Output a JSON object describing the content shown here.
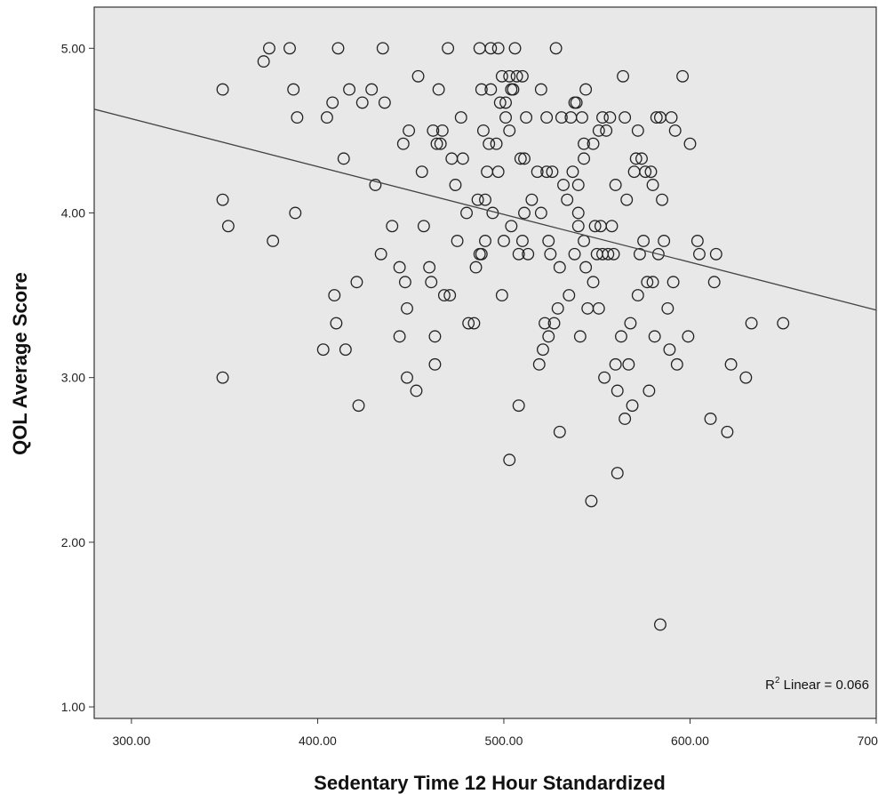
{
  "chart_data": {
    "type": "scatter",
    "xlabel": "Sedentary Time 12 Hour Standardized",
    "ylabel": "QOL Average Score",
    "xlim": [
      280,
      700
    ],
    "ylim": [
      0.93,
      5.25
    ],
    "xticks": [
      300,
      400,
      500,
      600,
      700
    ],
    "xtick_labels": [
      "300.00",
      "400.00",
      "500.00",
      "600.00",
      "700.00"
    ],
    "yticks": [
      1,
      2,
      3,
      4,
      5
    ],
    "ytick_labels": [
      "1.00",
      "2.00",
      "3.00",
      "4.00",
      "5.00"
    ],
    "grid": false,
    "plot_background": "#e8e8e8",
    "marker_color": "#222222",
    "fit_line": {
      "type": "linear",
      "points": [
        [
          280,
          4.63
        ],
        [
          700,
          3.41
        ]
      ],
      "annotation_prefix": "R",
      "annotation_sup": "2",
      "annotation_suffix": " Linear = 0.066"
    },
    "points": [
      [
        349,
        4.75
      ],
      [
        349,
        4.08
      ],
      [
        349,
        3.0
      ],
      [
        352,
        3.92
      ],
      [
        371,
        4.92
      ],
      [
        374,
        5.0
      ],
      [
        376,
        3.83
      ],
      [
        385,
        5.0
      ],
      [
        387,
        4.75
      ],
      [
        388,
        4.0
      ],
      [
        389,
        4.58
      ],
      [
        403,
        3.17
      ],
      [
        405,
        4.58
      ],
      [
        408,
        4.67
      ],
      [
        409,
        3.5
      ],
      [
        410,
        3.33
      ],
      [
        411,
        5.0
      ],
      [
        414,
        4.33
      ],
      [
        415,
        3.17
      ],
      [
        417,
        4.75
      ],
      [
        421,
        3.58
      ],
      [
        422,
        2.83
      ],
      [
        424,
        4.67
      ],
      [
        429,
        4.75
      ],
      [
        431,
        4.17
      ],
      [
        434,
        3.75
      ],
      [
        435,
        5.0
      ],
      [
        436,
        4.67
      ],
      [
        440,
        3.92
      ],
      [
        444,
        3.67
      ],
      [
        444,
        3.25
      ],
      [
        446,
        4.42
      ],
      [
        447,
        3.58
      ],
      [
        448,
        3.0
      ],
      [
        448,
        3.42
      ],
      [
        449,
        4.5
      ],
      [
        453,
        2.92
      ],
      [
        454,
        4.83
      ],
      [
        456,
        4.25
      ],
      [
        457,
        3.92
      ],
      [
        460,
        3.67
      ],
      [
        461,
        3.58
      ],
      [
        462,
        4.5
      ],
      [
        463,
        3.25
      ],
      [
        463,
        3.08
      ],
      [
        464,
        4.42
      ],
      [
        465,
        4.75
      ],
      [
        466,
        4.42
      ],
      [
        467,
        4.5
      ],
      [
        468,
        3.5
      ],
      [
        470,
        5.0
      ],
      [
        471,
        3.5
      ],
      [
        472,
        4.33
      ],
      [
        474,
        4.17
      ],
      [
        475,
        3.83
      ],
      [
        477,
        4.58
      ],
      [
        478,
        4.33
      ],
      [
        480,
        4.0
      ],
      [
        481,
        3.33
      ],
      [
        484,
        3.33
      ],
      [
        485,
        3.67
      ],
      [
        486,
        4.08
      ],
      [
        487,
        3.75
      ],
      [
        487,
        5.0
      ],
      [
        488,
        4.75
      ],
      [
        488,
        3.75
      ],
      [
        489,
        4.5
      ],
      [
        490,
        4.08
      ],
      [
        490,
        3.83
      ],
      [
        491,
        4.25
      ],
      [
        492,
        4.42
      ],
      [
        493,
        4.75
      ],
      [
        493,
        5.0
      ],
      [
        494,
        4.0
      ],
      [
        496,
        4.42
      ],
      [
        497,
        4.25
      ],
      [
        497,
        5.0
      ],
      [
        498,
        4.67
      ],
      [
        499,
        3.5
      ],
      [
        499,
        4.83
      ],
      [
        500,
        3.83
      ],
      [
        501,
        4.67
      ],
      [
        501,
        4.58
      ],
      [
        503,
        4.83
      ],
      [
        503,
        4.5
      ],
      [
        503,
        2.5
      ],
      [
        504,
        4.75
      ],
      [
        504,
        3.92
      ],
      [
        505,
        4.75
      ],
      [
        506,
        5.0
      ],
      [
        507,
        4.83
      ],
      [
        508,
        3.75
      ],
      [
        508,
        2.83
      ],
      [
        509,
        4.33
      ],
      [
        510,
        4.83
      ],
      [
        510,
        3.83
      ],
      [
        511,
        4.33
      ],
      [
        511,
        4.0
      ],
      [
        512,
        4.58
      ],
      [
        513,
        3.75
      ],
      [
        515,
        4.08
      ],
      [
        518,
        4.25
      ],
      [
        519,
        3.08
      ],
      [
        520,
        4.0
      ],
      [
        520,
        4.75
      ],
      [
        521,
        3.17
      ],
      [
        522,
        3.33
      ],
      [
        523,
        4.25
      ],
      [
        523,
        4.58
      ],
      [
        524,
        3.83
      ],
      [
        524,
        3.25
      ],
      [
        525,
        3.75
      ],
      [
        526,
        4.25
      ],
      [
        527,
        3.33
      ],
      [
        528,
        5.0
      ],
      [
        529,
        3.42
      ],
      [
        530,
        3.67
      ],
      [
        530,
        2.67
      ],
      [
        531,
        4.58
      ],
      [
        532,
        4.17
      ],
      [
        534,
        4.08
      ],
      [
        535,
        3.5
      ],
      [
        536,
        4.58
      ],
      [
        537,
        4.25
      ],
      [
        538,
        4.67
      ],
      [
        538,
        3.75
      ],
      [
        539,
        4.67
      ],
      [
        540,
        4.17
      ],
      [
        540,
        3.92
      ],
      [
        540,
        4.0
      ],
      [
        541,
        3.25
      ],
      [
        542,
        4.58
      ],
      [
        543,
        4.33
      ],
      [
        543,
        4.42
      ],
      [
        543,
        3.83
      ],
      [
        544,
        3.67
      ],
      [
        544,
        4.75
      ],
      [
        545,
        3.42
      ],
      [
        547,
        2.25
      ],
      [
        548,
        3.58
      ],
      [
        548,
        4.42
      ],
      [
        549,
        3.92
      ],
      [
        550,
        3.75
      ],
      [
        551,
        4.5
      ],
      [
        551,
        3.42
      ],
      [
        552,
        3.92
      ],
      [
        553,
        4.58
      ],
      [
        553,
        3.75
      ],
      [
        554,
        3.0
      ],
      [
        555,
        4.5
      ],
      [
        556,
        3.75
      ],
      [
        557,
        4.58
      ],
      [
        558,
        3.92
      ],
      [
        559,
        3.75
      ],
      [
        560,
        4.17
      ],
      [
        560,
        3.08
      ],
      [
        561,
        2.42
      ],
      [
        561,
        2.92
      ],
      [
        563,
        3.25
      ],
      [
        564,
        4.83
      ],
      [
        565,
        4.58
      ],
      [
        565,
        2.75
      ],
      [
        566,
        4.08
      ],
      [
        567,
        3.08
      ],
      [
        568,
        3.33
      ],
      [
        569,
        2.83
      ],
      [
        570,
        4.25
      ],
      [
        571,
        4.33
      ],
      [
        572,
        3.5
      ],
      [
        572,
        4.5
      ],
      [
        573,
        3.75
      ],
      [
        574,
        4.33
      ],
      [
        575,
        3.83
      ],
      [
        576,
        4.25
      ],
      [
        577,
        3.58
      ],
      [
        578,
        2.92
      ],
      [
        579,
        4.25
      ],
      [
        580,
        4.17
      ],
      [
        580,
        3.58
      ],
      [
        581,
        3.25
      ],
      [
        582,
        4.58
      ],
      [
        583,
        3.75
      ],
      [
        584,
        1.5
      ],
      [
        584,
        4.58
      ],
      [
        585,
        4.08
      ],
      [
        586,
        3.83
      ],
      [
        588,
        3.42
      ],
      [
        589,
        3.17
      ],
      [
        590,
        4.58
      ],
      [
        591,
        3.58
      ],
      [
        592,
        4.5
      ],
      [
        593,
        3.08
      ],
      [
        596,
        4.83
      ],
      [
        599,
        3.25
      ],
      [
        600,
        4.42
      ],
      [
        604,
        3.83
      ],
      [
        605,
        3.75
      ],
      [
        611,
        2.75
      ],
      [
        613,
        3.58
      ],
      [
        614,
        3.75
      ],
      [
        620,
        2.67
      ],
      [
        622,
        3.08
      ],
      [
        630,
        3.0
      ],
      [
        633,
        3.33
      ],
      [
        650,
        3.33
      ]
    ]
  }
}
